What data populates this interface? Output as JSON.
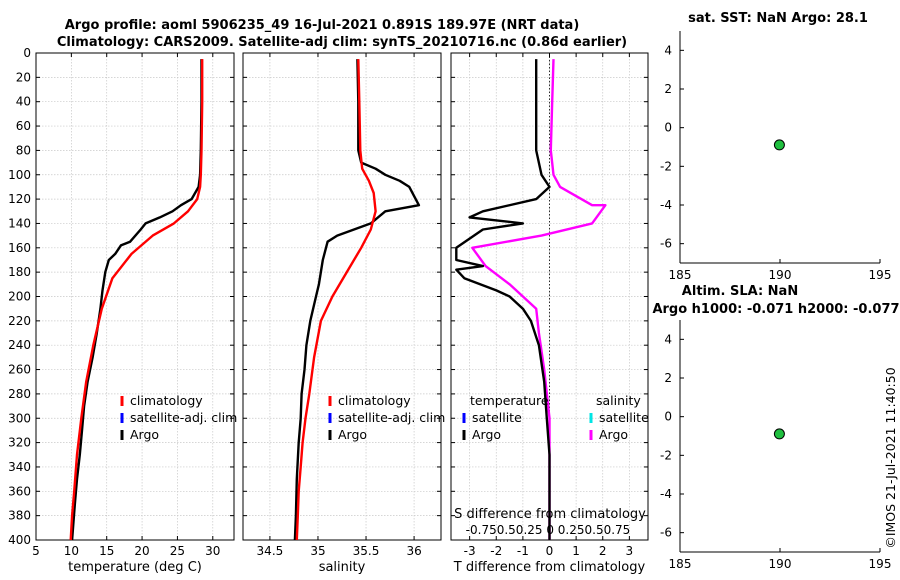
{
  "figure": {
    "title_line1": "Argo profile: aoml 5906235_49 16-Jul-2021 0.891S 189.97E (NRT data)",
    "title_line2": "Climatology: CARS2009. Satellite-adj clim: synTS_20210716.nc (0.86d earlier)",
    "timestamp": "©IMOS 21-Jul-2021 11:40:50"
  },
  "colors": {
    "climatology": "#ff0000",
    "satellite_adj": "#0000ff",
    "argo": "#000000",
    "satellite_temp": "#0000ff",
    "satellite_sal": "#00e5e5",
    "argo_sal": "#ff00ff",
    "marker": "#1fbf3f"
  },
  "chart_data": [
    {
      "type": "line",
      "id": "temperature",
      "xlabel": "temperature (deg C)",
      "ylabel": "",
      "xlim": [
        5,
        33
      ],
      "ylim": [
        0,
        400
      ],
      "xticks": [
        5,
        10,
        15,
        20,
        25,
        30
      ],
      "yticks": [
        0,
        20,
        40,
        60,
        80,
        100,
        120,
        140,
        160,
        180,
        200,
        220,
        240,
        260,
        280,
        300,
        320,
        340,
        360,
        380,
        400
      ],
      "legend": [
        "climatology",
        "satellite-adj. clim",
        "Argo"
      ],
      "series": [
        {
          "name": "climatology",
          "x": [
            28.5,
            28.5,
            28.4,
            28.3,
            28.2,
            27.8,
            26.5,
            24.5,
            21.5,
            18.5,
            15.8,
            14.3,
            13.1,
            12.1,
            11.4,
            10.8,
            10.4,
            10.1,
            9.9
          ],
          "y": [
            5,
            40,
            80,
            100,
            110,
            120,
            130,
            140,
            150,
            165,
            185,
            210,
            240,
            270,
            300,
            330,
            360,
            380,
            400
          ]
        },
        {
          "name": "Argo",
          "x": [
            28.4,
            28.4,
            28.3,
            28.2,
            28.0,
            27.0,
            25.5,
            24.3,
            22.5,
            20.5,
            19.8,
            18.3,
            17.0,
            16.2,
            15.3,
            14.8,
            14.4,
            14.1,
            13.6,
            13.0,
            12.3,
            11.8,
            11.5,
            11.2,
            10.8,
            10.5,
            10.3,
            10.1
          ],
          "y": [
            5,
            40,
            80,
            100,
            110,
            120,
            125,
            130,
            135,
            140,
            145,
            155,
            158,
            165,
            170,
            180,
            195,
            210,
            230,
            250,
            270,
            290,
            310,
            330,
            350,
            370,
            385,
            400
          ]
        }
      ]
    },
    {
      "type": "line",
      "id": "salinity",
      "xlabel": "salinity",
      "ylabel": "",
      "xlim": [
        34.22,
        36.28
      ],
      "ylim": [
        0,
        400
      ],
      "xticks": [
        34.5,
        35,
        35.5,
        36
      ],
      "yticks": [
        0,
        20,
        40,
        60,
        80,
        100,
        120,
        140,
        160,
        180,
        200,
        220,
        240,
        260,
        280,
        300,
        320,
        340,
        360,
        380,
        400
      ],
      "legend": [
        "climatology",
        "satellite-adj. clim",
        "Argo"
      ],
      "series": [
        {
          "name": "climatology",
          "x": [
            35.42,
            35.43,
            35.44,
            35.46,
            35.53,
            35.58,
            35.6,
            35.55,
            35.45,
            35.3,
            35.15,
            35.03,
            34.96,
            34.91,
            34.87,
            34.84,
            34.82,
            34.8,
            34.79,
            34.78
          ],
          "y": [
            5,
            40,
            80,
            95,
            105,
            115,
            130,
            145,
            160,
            180,
            200,
            220,
            250,
            280,
            300,
            320,
            340,
            360,
            380,
            400
          ]
        },
        {
          "name": "Argo",
          "x": [
            35.41,
            35.42,
            35.42,
            35.45,
            35.6,
            35.7,
            35.85,
            35.95,
            36.05,
            35.7,
            35.55,
            35.2,
            35.1,
            35.05,
            35.01,
            34.98,
            34.92,
            34.88,
            34.86,
            34.83,
            34.82,
            34.8,
            34.78,
            34.77,
            34.76
          ],
          "y": [
            5,
            40,
            80,
            90,
            95,
            100,
            105,
            110,
            125,
            130,
            140,
            150,
            155,
            170,
            190,
            200,
            220,
            240,
            260,
            280,
            300,
            320,
            350,
            380,
            400
          ]
        }
      ]
    },
    {
      "type": "line",
      "id": "difference",
      "xlabel": "T difference from climatology",
      "xlabel_top": "S difference from climatology",
      "top_ticks": "-0.750.50.25 0 0.250.50.75",
      "xlim": [
        -3.7,
        3.7
      ],
      "ylim": [
        0,
        400
      ],
      "xticks": [
        -3,
        -2,
        -1,
        0,
        1,
        2,
        3
      ],
      "yticks": [
        0,
        20,
        40,
        60,
        80,
        100,
        120,
        140,
        160,
        180,
        200,
        220,
        240,
        260,
        280,
        300,
        320,
        340,
        360,
        380,
        400
      ],
      "legend_temperature_title": "temperature",
      "legend_salinity_title": "salinity",
      "legend_temperature": [
        "satellite",
        "Argo"
      ],
      "legend_salinity": [
        "satellite",
        "Argo"
      ],
      "series": [
        {
          "name": "T difference (Argo)",
          "x": [
            -0.5,
            -0.5,
            -0.5,
            -0.3,
            0,
            -0.5,
            -2.5,
            -3,
            -1,
            -2.5,
            -3.5,
            -3.5,
            -2.5,
            -3.5,
            -3.2,
            -2,
            -1.5,
            -1,
            -0.7,
            -0.4,
            -0.2,
            -0.1,
            0,
            0,
            0,
            0
          ],
          "y": [
            5,
            40,
            80,
            100,
            110,
            120,
            130,
            135,
            140,
            145,
            160,
            170,
            175,
            178,
            185,
            195,
            200,
            210,
            220,
            240,
            270,
            300,
            330,
            360,
            380,
            400
          ]
        },
        {
          "name": "S difference (Argo)",
          "x": [
            0.15,
            0.1,
            0.05,
            0.15,
            0.4,
            1.6,
            2.1,
            1.6,
            -0.3,
            -2.9,
            -2.4,
            -1.5,
            -0.5,
            -0.4,
            -0.2,
            0,
            0,
            0,
            0
          ],
          "y": [
            5,
            40,
            80,
            100,
            110,
            125,
            125,
            140,
            150,
            160,
            175,
            190,
            210,
            230,
            260,
            300,
            340,
            380,
            400
          ]
        }
      ]
    },
    {
      "type": "scatter",
      "id": "sst",
      "title": "sat. SST: NaN Argo: 28.1",
      "xlim": [
        185,
        195
      ],
      "ylim": [
        -7,
        5
      ],
      "xticks": [
        185,
        190,
        195
      ],
      "yticks": [
        4,
        2,
        0,
        -2,
        -4,
        -6
      ],
      "points": [
        {
          "x": 189.97,
          "y": -0.891
        }
      ]
    },
    {
      "type": "scatter",
      "id": "sla",
      "title_line1": "Altim. SLA: NaN",
      "title_line2": "Argo h1000: -0.071 h2000: -0.077",
      "xlim": [
        185,
        195
      ],
      "ylim": [
        -7,
        5
      ],
      "xticks": [
        185,
        190,
        195
      ],
      "yticks": [
        4,
        2,
        0,
        -2,
        -4,
        -6
      ],
      "points": [
        {
          "x": 189.97,
          "y": -0.891
        }
      ]
    }
  ]
}
